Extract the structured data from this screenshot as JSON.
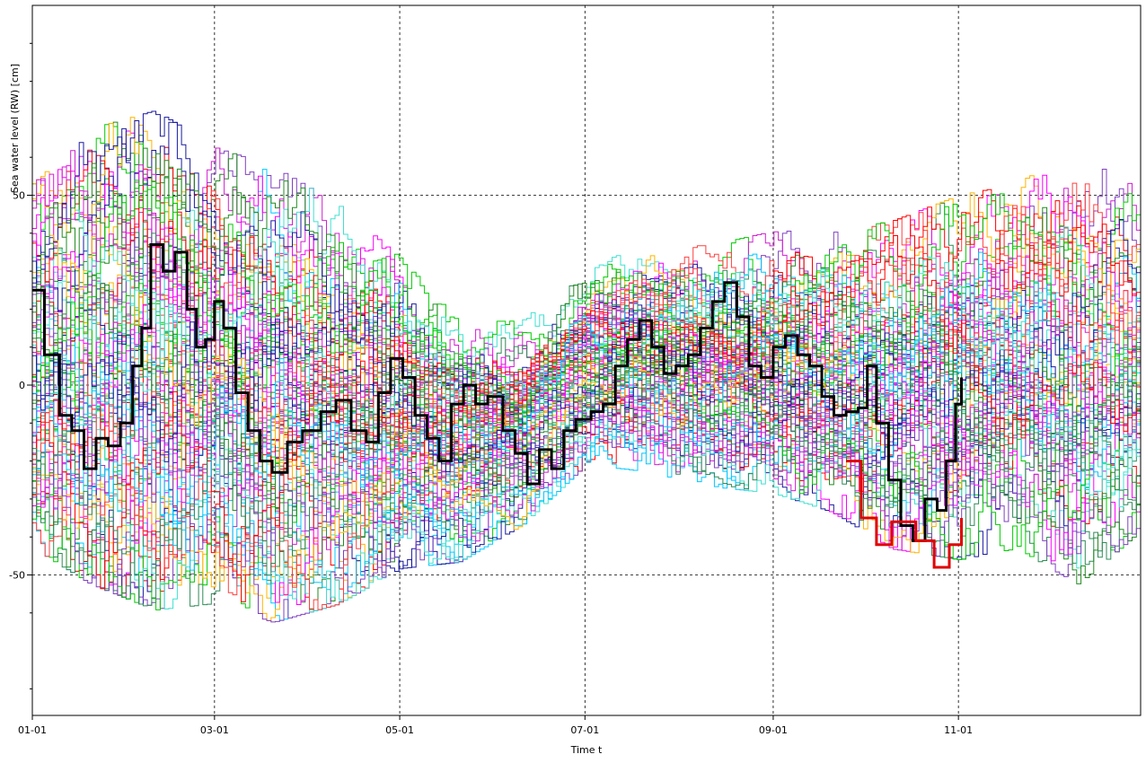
{
  "chart_data": {
    "type": "line",
    "step_lines": true,
    "title": "",
    "xlabel": "Time t",
    "ylabel": "Sea water level (RW) [cm]",
    "x_tick_labels": [
      "01-01",
      "03-01",
      "05-01",
      "07-01",
      "09-01",
      "11-01"
    ],
    "x_tick_dates": [
      "2000-01-01",
      "2000-03-01",
      "2000-05-01",
      "2000-07-01",
      "2000-09-01",
      "2000-11-01"
    ],
    "xlim": [
      "2000-01-01",
      "2000-12-31"
    ],
    "y_tick_labels": [
      "50",
      "0",
      "-50"
    ],
    "y_ticks": [
      50,
      0,
      -50
    ],
    "y_minor_ticks": [
      -80,
      -60,
      -40,
      -30,
      -20,
      -10,
      10,
      20,
      30,
      40,
      60,
      80,
      90
    ],
    "ylim": [
      -87,
      100
    ],
    "grid": true,
    "grid_style": "dotted",
    "legend": "none",
    "ensemble": {
      "description_count": 90,
      "colors": [
        "#d21fd2",
        "#ff0000",
        "#00cc00",
        "#00c8ff",
        "#1a1aa0",
        "#2e8b57",
        "#ffb400",
        "#ff00ff",
        "#228B22",
        "#ff4040",
        "#8040c0",
        "#40e0d0"
      ],
      "envelope": [
        {
          "x": "2000-01-01",
          "y_min": -45,
          "y_max": 55
        },
        {
          "x": "2000-01-20",
          "y_min": -55,
          "y_max": 70
        },
        {
          "x": "2000-02-10",
          "y_min": -62,
          "y_max": 75
        },
        {
          "x": "2000-03-01",
          "y_min": -60,
          "y_max": 65
        },
        {
          "x": "2000-03-20",
          "y_min": -65,
          "y_max": 60
        },
        {
          "x": "2000-04-10",
          "y_min": -60,
          "y_max": 50
        },
        {
          "x": "2000-05-01",
          "y_min": -50,
          "y_max": 35
        },
        {
          "x": "2000-05-20",
          "y_min": -48,
          "y_max": 18
        },
        {
          "x": "2000-06-10",
          "y_min": -38,
          "y_max": 18
        },
        {
          "x": "2000-07-01",
          "y_min": -22,
          "y_max": 32
        },
        {
          "x": "2000-07-20",
          "y_min": -24,
          "y_max": 38
        },
        {
          "x": "2000-08-10",
          "y_min": -28,
          "y_max": 38
        },
        {
          "x": "2000-09-01",
          "y_min": -30,
          "y_max": 42
        },
        {
          "x": "2000-09-20",
          "y_min": -35,
          "y_max": 42
        },
        {
          "x": "2000-10-10",
          "y_min": -45,
          "y_max": 45
        },
        {
          "x": "2000-11-01",
          "y_min": -48,
          "y_max": 52
        },
        {
          "x": "2000-11-20",
          "y_min": -45,
          "y_max": 55
        },
        {
          "x": "2000-12-10",
          "y_min": -55,
          "y_max": 65
        },
        {
          "x": "2000-12-31",
          "y_min": -40,
          "y_max": 55
        }
      ]
    },
    "series": [
      {
        "color": "#000000",
        "highlighted": true,
        "points": [
          {
            "x": "2000-01-01",
            "y": 25
          },
          {
            "x": "2000-01-05",
            "y": 8
          },
          {
            "x": "2000-01-10",
            "y": -8
          },
          {
            "x": "2000-01-14",
            "y": -12
          },
          {
            "x": "2000-01-18",
            "y": -22
          },
          {
            "x": "2000-01-22",
            "y": -14
          },
          {
            "x": "2000-01-26",
            "y": -16
          },
          {
            "x": "2000-01-30",
            "y": -10
          },
          {
            "x": "2000-02-03",
            "y": 5
          },
          {
            "x": "2000-02-06",
            "y": 15
          },
          {
            "x": "2000-02-09",
            "y": 37
          },
          {
            "x": "2000-02-13",
            "y": 30
          },
          {
            "x": "2000-02-17",
            "y": 35
          },
          {
            "x": "2000-02-21",
            "y": 20
          },
          {
            "x": "2000-02-24",
            "y": 10
          },
          {
            "x": "2000-02-27",
            "y": 12
          },
          {
            "x": "2000-03-01",
            "y": 22
          },
          {
            "x": "2000-03-04",
            "y": 15
          },
          {
            "x": "2000-03-08",
            "y": -2
          },
          {
            "x": "2000-03-12",
            "y": -12
          },
          {
            "x": "2000-03-16",
            "y": -20
          },
          {
            "x": "2000-03-20",
            "y": -23
          },
          {
            "x": "2000-03-25",
            "y": -15
          },
          {
            "x": "2000-03-30",
            "y": -12
          },
          {
            "x": "2000-04-05",
            "y": -7
          },
          {
            "x": "2000-04-10",
            "y": -4
          },
          {
            "x": "2000-04-15",
            "y": -12
          },
          {
            "x": "2000-04-20",
            "y": -15
          },
          {
            "x": "2000-04-24",
            "y": -2
          },
          {
            "x": "2000-04-28",
            "y": 7
          },
          {
            "x": "2000-05-02",
            "y": 2
          },
          {
            "x": "2000-05-06",
            "y": -8
          },
          {
            "x": "2000-05-10",
            "y": -14
          },
          {
            "x": "2000-05-14",
            "y": -20
          },
          {
            "x": "2000-05-18",
            "y": -5
          },
          {
            "x": "2000-05-22",
            "y": 0
          },
          {
            "x": "2000-05-26",
            "y": -5
          },
          {
            "x": "2000-05-30",
            "y": -3
          },
          {
            "x": "2000-06-04",
            "y": -12
          },
          {
            "x": "2000-06-08",
            "y": -18
          },
          {
            "x": "2000-06-12",
            "y": -26
          },
          {
            "x": "2000-06-16",
            "y": -17
          },
          {
            "x": "2000-06-20",
            "y": -22
          },
          {
            "x": "2000-06-24",
            "y": -12
          },
          {
            "x": "2000-06-28",
            "y": -9
          },
          {
            "x": "2000-07-03",
            "y": -7
          },
          {
            "x": "2000-07-07",
            "y": -5
          },
          {
            "x": "2000-07-11",
            "y": 5
          },
          {
            "x": "2000-07-15",
            "y": 12
          },
          {
            "x": "2000-07-19",
            "y": 17
          },
          {
            "x": "2000-07-23",
            "y": 10
          },
          {
            "x": "2000-07-27",
            "y": 3
          },
          {
            "x": "2000-07-31",
            "y": 5
          },
          {
            "x": "2000-08-04",
            "y": 8
          },
          {
            "x": "2000-08-08",
            "y": 15
          },
          {
            "x": "2000-08-12",
            "y": 22
          },
          {
            "x": "2000-08-16",
            "y": 27
          },
          {
            "x": "2000-08-20",
            "y": 18
          },
          {
            "x": "2000-08-24",
            "y": 5
          },
          {
            "x": "2000-08-28",
            "y": 2
          },
          {
            "x": "2000-09-01",
            "y": 10
          },
          {
            "x": "2000-09-05",
            "y": 13
          },
          {
            "x": "2000-09-09",
            "y": 8
          },
          {
            "x": "2000-09-13",
            "y": 5
          },
          {
            "x": "2000-09-17",
            "y": -3
          },
          {
            "x": "2000-09-21",
            "y": -8
          },
          {
            "x": "2000-09-25",
            "y": -7
          },
          {
            "x": "2000-09-29",
            "y": -6
          },
          {
            "x": "2000-10-02",
            "y": 5
          },
          {
            "x": "2000-10-05",
            "y": -10
          },
          {
            "x": "2000-10-09",
            "y": -25
          },
          {
            "x": "2000-10-13",
            "y": -37
          },
          {
            "x": "2000-10-17",
            "y": -41
          },
          {
            "x": "2000-10-21",
            "y": -30
          },
          {
            "x": "2000-10-25",
            "y": -33
          },
          {
            "x": "2000-10-28",
            "y": -20
          },
          {
            "x": "2000-10-31",
            "y": -5
          },
          {
            "x": "2000-11-02",
            "y": 2
          }
        ]
      },
      {
        "color": "#e00000",
        "highlighted": true,
        "points": [
          {
            "x": "2000-09-25",
            "y": -20
          },
          {
            "x": "2000-09-30",
            "y": -35
          },
          {
            "x": "2000-10-05",
            "y": -42
          },
          {
            "x": "2000-10-10",
            "y": -36
          },
          {
            "x": "2000-10-18",
            "y": -41
          },
          {
            "x": "2000-10-24",
            "y": -48
          },
          {
            "x": "2000-10-29",
            "y": -42
          },
          {
            "x": "2000-11-02",
            "y": -35
          }
        ]
      }
    ]
  }
}
